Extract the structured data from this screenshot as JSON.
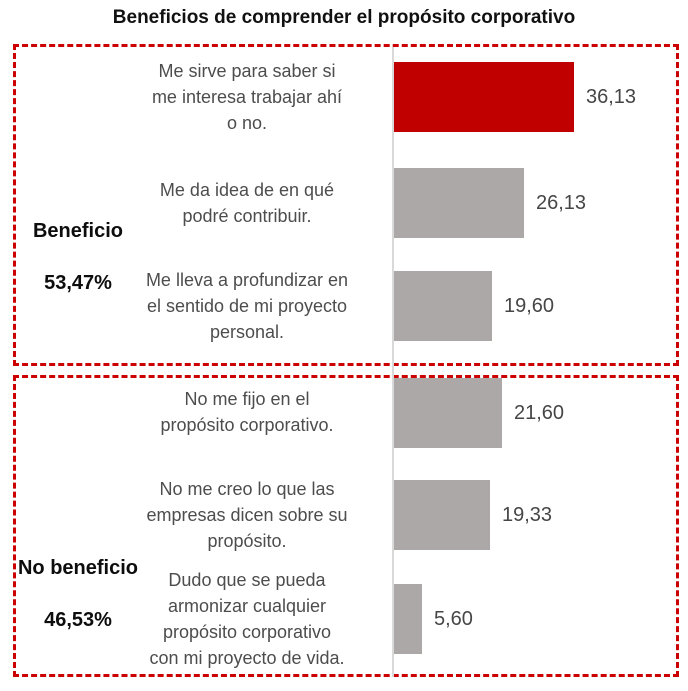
{
  "title": "Beneficios de comprender el propósito corporativo",
  "colors": {
    "accent_red": "#C00000",
    "bar_gray": "#ACA8A8",
    "border_dash_red": "#CC0000",
    "axis_gray": "#D9D9D9",
    "category_text": "#4D4D4D",
    "title_text": "#111111"
  },
  "groups": [
    {
      "name": "Beneficio",
      "share": "53,47%"
    },
    {
      "name": "No beneficio",
      "share": "46,53%"
    }
  ],
  "chart_data": {
    "type": "bar",
    "orientation": "horizontal",
    "title": "Beneficios de comprender el propósito corporativo",
    "categories": [
      "Me sirve para saber si me interesa trabajar ahí o no.",
      "Me da idea de en qué podré contribuir.",
      "Me lleva a profundizar en el sentido de mi proyecto personal.",
      "No me fijo en el propósito corporativo.",
      "No me creo lo que las empresas dicen sobre su propósito.",
      "Dudo que se pueda armonizar cualquier propósito corporativo con mi proyecto de vida."
    ],
    "label_lines": [
      [
        "Me sirve para saber si",
        "me interesa trabajar ahí",
        "o no."
      ],
      [
        "Me da idea de en qué",
        "podré contribuir."
      ],
      [
        "Me lleva a profundizar en",
        "el sentido de mi proyecto",
        "personal."
      ],
      [
        "No me fijo en el",
        "propósito corporativo."
      ],
      [
        "No me creo lo que las",
        "empresas dicen sobre su",
        "propósito."
      ],
      [
        "Dudo que se pueda",
        "armonizar cualquier",
        "propósito corporativo",
        "con mi proyecto de vida."
      ]
    ],
    "values": [
      36.13,
      26.13,
      19.6,
      21.6,
      19.33,
      5.6
    ],
    "data_labels": [
      "36,13",
      "26,13",
      "19,60",
      "21,60",
      "19,33",
      "5,60"
    ],
    "bar_colors": [
      "#C00000",
      "#ACA8A8",
      "#ACA8A8",
      "#ACA8A8",
      "#ACA8A8",
      "#ACA8A8"
    ],
    "group_totals": [
      {
        "label": "Beneficio",
        "percent": 53.47,
        "category_indexes": [
          0,
          1,
          2
        ]
      },
      {
        "label": "No beneficio",
        "percent": 46.53,
        "category_indexes": [
          3,
          4,
          5
        ]
      }
    ],
    "xlim": [
      0,
      40
    ],
    "grid": false,
    "legend": false
  }
}
